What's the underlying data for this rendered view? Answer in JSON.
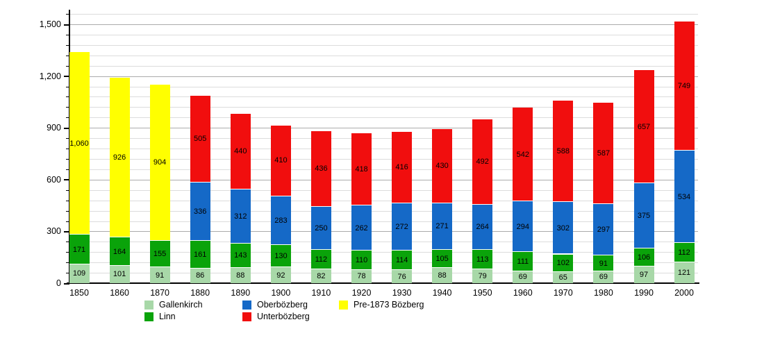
{
  "chart_data": {
    "type": "bar",
    "stacked": true,
    "title": "",
    "xlabel": "",
    "ylabel": "",
    "categories": [
      "1850",
      "1860",
      "1870",
      "1880",
      "1890",
      "1900",
      "1910",
      "1920",
      "1930",
      "1940",
      "1950",
      "1960",
      "1970",
      "1980",
      "1990",
      "2000"
    ],
    "series": [
      {
        "name": "Gallenkirch",
        "color": "#a8d8a8",
        "values": [
          109,
          101,
          91,
          86,
          88,
          92,
          82,
          78,
          76,
          88,
          79,
          69,
          65,
          69,
          97,
          121
        ]
      },
      {
        "name": "Linn",
        "color": "#0aa30a",
        "values": [
          171,
          164,
          155,
          161,
          143,
          130,
          112,
          110,
          114,
          105,
          113,
          111,
          102,
          91,
          106,
          112
        ]
      },
      {
        "name": "Oberbözberg",
        "color": "#1569c7",
        "values": [
          null,
          null,
          null,
          336,
          312,
          283,
          250,
          262,
          272,
          271,
          264,
          294,
          302,
          297,
          375,
          534
        ]
      },
      {
        "name": "Unterbözberg",
        "color": "#f10e0e",
        "values": [
          null,
          null,
          null,
          505,
          440,
          410,
          436,
          418,
          416,
          430,
          492,
          542,
          588,
          587,
          657,
          749
        ]
      },
      {
        "name": "Pre-1873 Bözberg",
        "color": "#ffff00",
        "values": [
          1060,
          926,
          904,
          null,
          null,
          null,
          null,
          null,
          null,
          null,
          null,
          null,
          null,
          null,
          null,
          null
        ]
      }
    ],
    "y_axis": {
      "major_ticks": [
        0,
        300,
        600,
        900,
        1200,
        1500
      ],
      "minor_step": 60,
      "ymax": 1560,
      "ylim": [
        0,
        1560
      ]
    },
    "grid": true,
    "legend": {
      "position": "bottom",
      "columns": [
        [
          "Gallenkirch",
          "Linn"
        ],
        [
          "Oberbözberg",
          "Unterbözberg"
        ],
        [
          "Pre-1873 Bözberg"
        ]
      ]
    }
  }
}
